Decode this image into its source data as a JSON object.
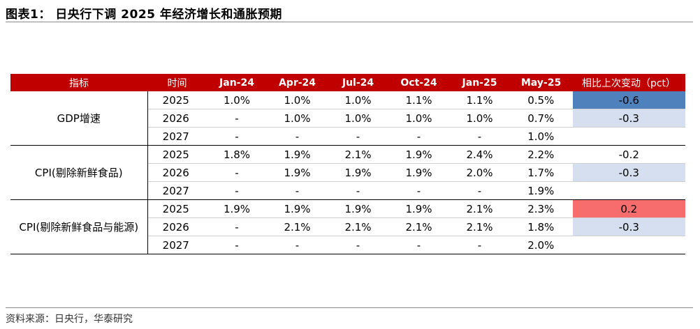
{
  "title": "图表1： 日央行下调 2025 年经济增长和通胀预期",
  "table": {
    "headers": [
      "指标",
      "时间",
      "Jan-24",
      "Apr-24",
      "Jul-24",
      "Oct-24",
      "Jan-25",
      "May-25",
      "相比上次变动（pct）"
    ],
    "groups": [
      {
        "name": "GDP增速",
        "rows": [
          {
            "year": "2025",
            "values": [
              "1.0%",
              "1.0%",
              "1.0%",
              "1.1%",
              "1.1%",
              "0.5%"
            ],
            "change": "-0.6",
            "change_color": "#4f81bd"
          },
          {
            "year": "2026",
            "values": [
              "-",
              "1.0%",
              "1.0%",
              "1.0%",
              "1.0%",
              "0.7%"
            ],
            "change": "-0.3",
            "change_color": "#d6dff0"
          },
          {
            "year": "2027",
            "values": [
              "-",
              "-",
              "-",
              "-",
              "-",
              "1.0%"
            ],
            "change": "",
            "change_color": "#ffffff"
          }
        ]
      },
      {
        "name": "CPI(剔除新鲜食品)",
        "rows": [
          {
            "year": "2025",
            "values": [
              "1.8%",
              "1.9%",
              "2.1%",
              "1.9%",
              "2.4%",
              "2.2%"
            ],
            "change": "-0.2",
            "change_color": "#ffffff"
          },
          {
            "year": "2026",
            "values": [
              "-",
              "1.9%",
              "1.9%",
              "1.9%",
              "2.0%",
              "1.7%"
            ],
            "change": "-0.3",
            "change_color": "#d6dff0"
          },
          {
            "year": "2027",
            "values": [
              "-",
              "-",
              "-",
              "-",
              "-",
              "1.9%"
            ],
            "change": "",
            "change_color": "#ffffff"
          }
        ]
      },
      {
        "name": "CPI(剔除新鲜食品与能源)",
        "rows": [
          {
            "year": "2025",
            "values": [
              "1.9%",
              "1.9%",
              "1.9%",
              "1.9%",
              "2.1%",
              "2.3%"
            ],
            "change": "0.2",
            "change_color": "#f76c6c"
          },
          {
            "year": "2026",
            "values": [
              "-",
              "2.1%",
              "2.1%",
              "2.1%",
              "2.1%",
              "1.8%"
            ],
            "change": "-0.3",
            "change_color": "#d6dff0"
          },
          {
            "year": "2027",
            "values": [
              "-",
              "-",
              "-",
              "-",
              "-",
              "2.0%"
            ],
            "change": "",
            "change_color": "#ffffff"
          }
        ]
      }
    ]
  },
  "source": "资料来源：日央行，华泰研究",
  "colors": {
    "header_bg": "#c00000",
    "header_text": "#ffffff"
  }
}
